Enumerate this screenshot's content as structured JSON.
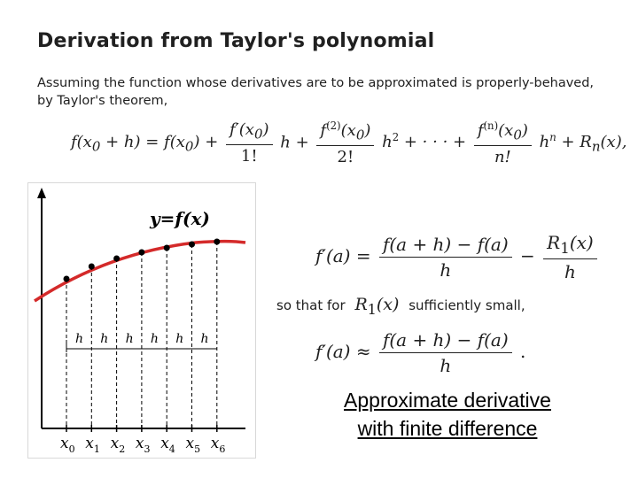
{
  "title": "Derivation from Taylor's polynomial",
  "intro": "Assuming the function whose derivatives are to be approximated is properly-behaved, by Taylor's theorem,",
  "equations": {
    "taylor": "f(x0 + h) = f(x0) + f′(x0)/1! h + f(2)(x0)/2! h² + ··· + f(n)(x0)/n! hⁿ + Rn(x),",
    "exact_derivative": "f′(a) = (f(a + h) − f(a))/h − R1(x)/h",
    "condition": "so that for R1(x) sufficiently small,",
    "approximation": "f′(a) ≈ (f(a + h) − f(a))/h ."
  },
  "so_that_prefix": "so that for",
  "so_that_suffix": "sufficiently small,",
  "figure": {
    "curve_label": "y=f(x)",
    "step_label": "h",
    "x_labels": [
      "x0",
      "x1",
      "x2",
      "x3",
      "x4",
      "x5",
      "x6"
    ],
    "curve_color": "#d42a2a"
  },
  "caption": {
    "line1": "Approximate derivative",
    "line2": "with finite difference"
  }
}
